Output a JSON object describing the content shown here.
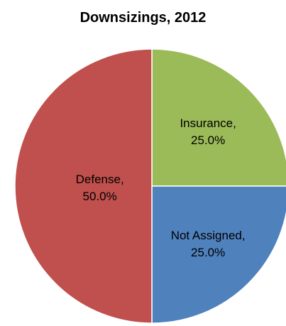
{
  "chart_data": {
    "type": "pie",
    "title": "Downsizings, 2012",
    "categories": [
      "Insurance",
      "Not Assigned",
      "Defense"
    ],
    "values": [
      25.0,
      25.0,
      50.0
    ],
    "colors": [
      "#9BBB59",
      "#4F81BD",
      "#C0504D"
    ],
    "labels": [
      {
        "name": "Insurance,",
        "pct": "25.0%"
      },
      {
        "name": "Not Assigned,",
        "pct": "25.0%"
      },
      {
        "name": "Defense,",
        "pct": "50.0%"
      }
    ],
    "start_angle": "12 o'clock, clockwise",
    "legend": "none"
  }
}
